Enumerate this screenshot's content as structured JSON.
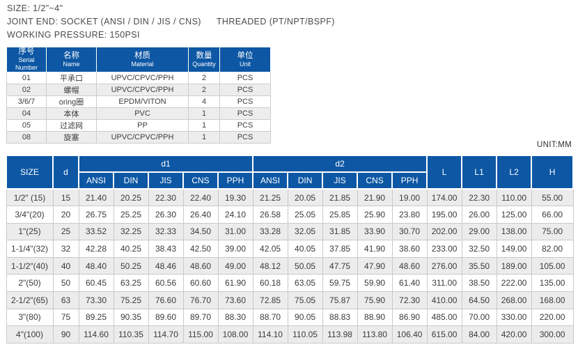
{
  "header": {
    "line1": "SIZE: 1/2\"~4\"",
    "line2a": "JOINT END: SOCKET (ANSI / DIN / JIS / CNS)",
    "line2b": "THREADED (PT/NPT/BSPF)",
    "line3": "WORKING PRESSURE: 150PSI"
  },
  "parts_table": {
    "columns": [
      {
        "zh": "序号",
        "en": "Serial Number"
      },
      {
        "zh": "名称",
        "en": "Name"
      },
      {
        "zh": "材质",
        "en": "Material"
      },
      {
        "zh": "数量",
        "en": "Quantity"
      },
      {
        "zh": "单位",
        "en": "Unit"
      }
    ],
    "rows": [
      [
        "01",
        "平承口",
        "UPVC/CPVC/PPH",
        "2",
        "PCS"
      ],
      [
        "02",
        "螺帽",
        "UPVC/CPVC/PPH",
        "2",
        "PCS"
      ],
      [
        "3/6/7",
        "oring圈",
        "EPDM/VITON",
        "4",
        "PCS"
      ],
      [
        "04",
        "本体",
        "PVC",
        "1",
        "PCS"
      ],
      [
        "05",
        "过滤网",
        "PP",
        "1",
        "PCS"
      ],
      [
        "08",
        "旋塞",
        "UPVC/CPVC/PPH",
        "1",
        "PCS"
      ]
    ]
  },
  "unit_label": "UNIT:MM",
  "dimensions_table": {
    "headers": {
      "size": "SIZE",
      "d": "d",
      "d1": "d1",
      "d2": "d2",
      "L": "L",
      "L1": "L1",
      "L2": "L2",
      "H": "H"
    },
    "sub_headers": [
      "ANSI",
      "DIN",
      "JIS",
      "CNS",
      "PPH"
    ],
    "rows": [
      {
        "size": "1/2\" (15)",
        "d": "15",
        "d1": [
          "21.40",
          "20.25",
          "22.30",
          "22.40",
          "19.30"
        ],
        "d2": [
          "21.25",
          "20.05",
          "21.85",
          "21.90",
          "19.00"
        ],
        "L": "174.00",
        "L1": "22.30",
        "L2": "110.00",
        "H": "55.00"
      },
      {
        "size": "3/4\"(20)",
        "d": "20",
        "d1": [
          "26.75",
          "25.25",
          "26.30",
          "26.40",
          "24.10"
        ],
        "d2": [
          "26.58",
          "25.05",
          "25.85",
          "25.90",
          "23.80"
        ],
        "L": "195.00",
        "L1": "26.00",
        "L2": "125.00",
        "H": "66.00"
      },
      {
        "size": "1\"(25)",
        "d": "25",
        "d1": [
          "33.52",
          "32.25",
          "32.33",
          "34.50",
          "31.00"
        ],
        "d2": [
          "33.28",
          "32.05",
          "31.85",
          "33.90",
          "30.70"
        ],
        "L": "202.00",
        "L1": "29.00",
        "L2": "138.00",
        "H": "75.00"
      },
      {
        "size": "1-1/4\"(32)",
        "d": "32",
        "d1": [
          "42.28",
          "40.25",
          "38.43",
          "42.50",
          "39.00"
        ],
        "d2": [
          "42.05",
          "40.05",
          "37.85",
          "41.90",
          "38.60"
        ],
        "L": "233.00",
        "L1": "32.50",
        "L2": "149.00",
        "H": "82.00"
      },
      {
        "size": "1-1/2\"(40)",
        "d": "40",
        "d1": [
          "48.40",
          "50.25",
          "48.46",
          "48.60",
          "49.00"
        ],
        "d2": [
          "48.12",
          "50.05",
          "47.75",
          "47.90",
          "48.60"
        ],
        "L": "276.00",
        "L1": "35.50",
        "L2": "189.00",
        "H": "105.00"
      },
      {
        "size": "2\"(50)",
        "d": "50",
        "d1": [
          "60.45",
          "63.25",
          "60.56",
          "60.60",
          "61.90"
        ],
        "d2": [
          "60.18",
          "63.05",
          "59.75",
          "59.90",
          "61.40"
        ],
        "L": "311.00",
        "L1": "38.50",
        "L2": "222.00",
        "H": "135.00"
      },
      {
        "size": "2-1/2\"(65)",
        "d": "63",
        "d1": [
          "73.30",
          "75.25",
          "76.60",
          "76.70",
          "73.60"
        ],
        "d2": [
          "72.85",
          "75.05",
          "75.87",
          "75.90",
          "72.30"
        ],
        "L": "410.00",
        "L1": "64.50",
        "L2": "268.00",
        "H": "168.00"
      },
      {
        "size": "3\"(80)",
        "d": "75",
        "d1": [
          "89.25",
          "90.35",
          "89.60",
          "89.70",
          "88.30"
        ],
        "d2": [
          "88.70",
          "90.05",
          "88.83",
          "88.90",
          "86.90"
        ],
        "L": "485.00",
        "L1": "70.00",
        "L2": "330.00",
        "H": "220.00"
      },
      {
        "size": "4\"(100)",
        "d": "90",
        "d1": [
          "114.60",
          "110.35",
          "114.70",
          "115.00",
          "108.00"
        ],
        "d2": [
          "114.10",
          "110.05",
          "113.98",
          "113.80",
          "106.40"
        ],
        "L": "615.00",
        "L1": "84.00",
        "L2": "420.00",
        "H": "300.00"
      }
    ]
  },
  "colors": {
    "header_blue": "#0d57a4",
    "row_stripe": "#ededed",
    "grid_line": "#cccccc",
    "text": "#3c3c3c"
  }
}
